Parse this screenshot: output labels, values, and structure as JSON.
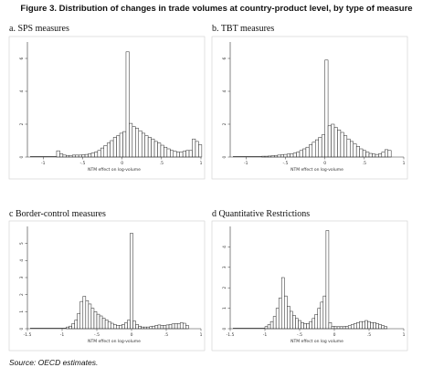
{
  "figure_title": "Figure 3. Distribution of changes in trade volumes at country-product level, by type of measure",
  "source_note": "Source: OECD estimates.",
  "chart_data": [
    {
      "type": "bar",
      "panel_title": "a. SPS measures",
      "xlabel": "NTM effect on log-volume",
      "ylabel": "",
      "xlim": [
        -1.2,
        1
      ],
      "ylim": [
        0,
        7
      ],
      "xticks": [
        -1,
        -0.5,
        0,
        0.5,
        1
      ],
      "xtick_labels": [
        "-1",
        "-.5",
        "0",
        ".5",
        "1"
      ],
      "yticks": [
        0,
        2,
        4,
        6
      ],
      "ytick_labels": [
        "0",
        "2",
        "4",
        "6"
      ],
      "bin_start": -0.83,
      "bin_width": 0.04,
      "values": [
        0.38,
        0.2,
        0.12,
        0.1,
        0.1,
        0.12,
        0.12,
        0.12,
        0.14,
        0.16,
        0.2,
        0.25,
        0.3,
        0.4,
        0.55,
        0.7,
        0.85,
        1.0,
        1.2,
        1.3,
        1.45,
        1.55,
        6.4,
        2.05,
        1.85,
        1.75,
        1.6,
        1.45,
        1.3,
        1.2,
        1.1,
        0.95,
        0.85,
        0.72,
        0.6,
        0.5,
        0.4,
        0.35,
        0.3,
        0.3,
        0.35,
        0.4,
        0.4,
        1.1,
        0.95,
        0.75
      ]
    },
    {
      "type": "bar",
      "panel_title": "b. TBT measures",
      "xlabel": "NTM effect on log-volume",
      "ylabel": "",
      "xlim": [
        -1.2,
        1
      ],
      "ylim": [
        0,
        7
      ],
      "xticks": [
        -1,
        -0.5,
        0,
        0.5,
        1
      ],
      "xtick_labels": [
        "-1",
        "-.5",
        "0",
        ".5",
        "1"
      ],
      "yticks": [
        0,
        2,
        4,
        6
      ],
      "ytick_labels": [
        "0",
        "2",
        "4",
        "6"
      ],
      "bin_start": -0.8,
      "bin_width": 0.04,
      "values": [
        0.05,
        0.05,
        0.06,
        0.08,
        0.1,
        0.12,
        0.14,
        0.16,
        0.18,
        0.2,
        0.24,
        0.3,
        0.4,
        0.5,
        0.6,
        0.75,
        0.9,
        1.05,
        1.2,
        1.35,
        5.9,
        1.9,
        2.0,
        1.8,
        1.65,
        1.5,
        1.3,
        1.1,
        0.95,
        0.8,
        0.65,
        0.5,
        0.4,
        0.3,
        0.22,
        0.18,
        0.16,
        0.2,
        0.3,
        0.45,
        0.4
      ]
    },
    {
      "type": "bar",
      "panel_title": "c Border-control measures",
      "xlabel": "NTM effect on log-volume",
      "ylabel": "",
      "xlim": [
        -1.5,
        1
      ],
      "ylim": [
        0,
        6
      ],
      "xticks": [
        -1.5,
        -1,
        -0.5,
        0,
        0.5,
        1
      ],
      "xtick_labels": [
        "-1.5",
        "-1",
        "-.5",
        "0",
        ".5",
        "1"
      ],
      "yticks": [
        0,
        1,
        2,
        3,
        4,
        5
      ],
      "ytick_labels": [
        "0",
        "1",
        "2",
        "3",
        "4",
        "5"
      ],
      "bin_start": -0.94,
      "bin_width": 0.04,
      "values": [
        0.1,
        0.15,
        0.3,
        0.5,
        0.9,
        1.6,
        1.9,
        1.65,
        1.45,
        1.2,
        1.0,
        0.85,
        0.75,
        0.62,
        0.52,
        0.42,
        0.32,
        0.25,
        0.2,
        0.2,
        0.25,
        0.35,
        0.5,
        5.6,
        0.45,
        0.25,
        0.15,
        0.1,
        0.1,
        0.1,
        0.12,
        0.15,
        0.2,
        0.22,
        0.2,
        0.18,
        0.22,
        0.25,
        0.28,
        0.3,
        0.3,
        0.35,
        0.32,
        0.2
      ]
    },
    {
      "type": "bar",
      "panel_title": "d Quantitative Restrictions",
      "xlabel": "NTM effect on log volume",
      "ylabel": "",
      "xlim": [
        -1.5,
        1
      ],
      "ylim": [
        0,
        5
      ],
      "xticks": [
        -1.5,
        -1,
        -0.5,
        0,
        0.5,
        1
      ],
      "xtick_labels": [
        "-1.5",
        "-1",
        "-.5",
        "0",
        ".5",
        "1"
      ],
      "yticks": [
        0,
        1,
        2,
        3,
        4
      ],
      "ytick_labels": [
        "0",
        "1",
        "2",
        "3",
        "4"
      ],
      "bin_start": -1.0,
      "bin_width": 0.04,
      "values": [
        0.1,
        0.2,
        0.35,
        0.6,
        1.0,
        1.5,
        2.5,
        1.6,
        1.1,
        0.85,
        0.65,
        0.5,
        0.4,
        0.3,
        0.25,
        0.25,
        0.35,
        0.5,
        0.7,
        1.0,
        1.3,
        1.6,
        4.8,
        0.3,
        0.12,
        0.1,
        0.1,
        0.1,
        0.1,
        0.12,
        0.15,
        0.2,
        0.25,
        0.3,
        0.35,
        0.35,
        0.4,
        0.35,
        0.3,
        0.3,
        0.25,
        0.2,
        0.15,
        0.1
      ]
    }
  ]
}
